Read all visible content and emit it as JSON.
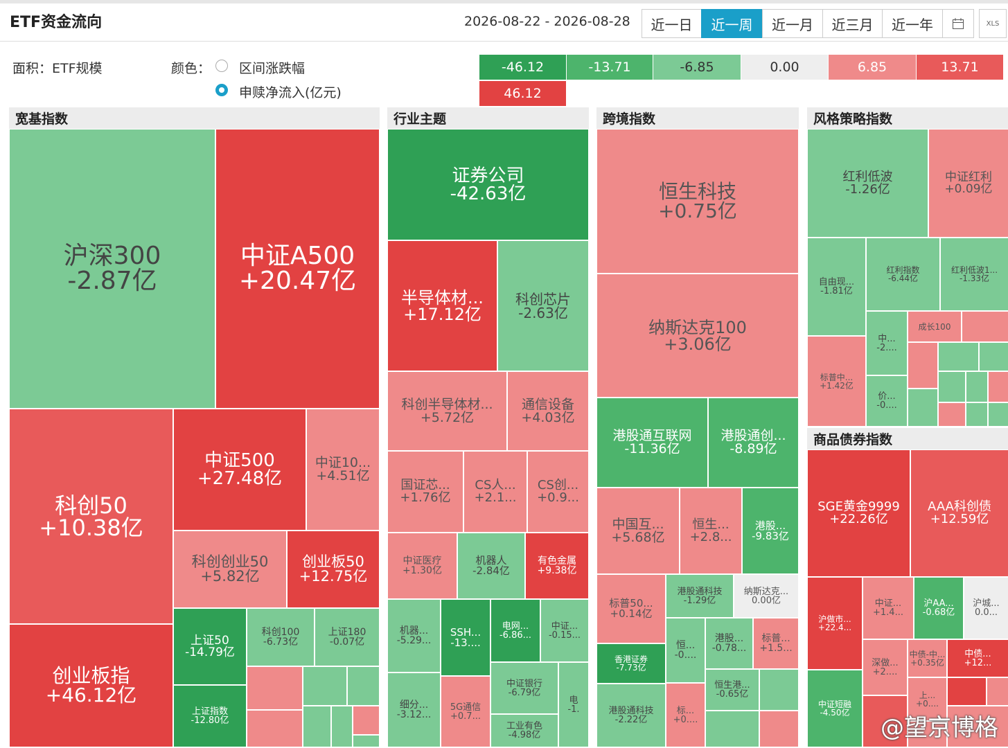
{
  "header": {
    "title": "ETF资金流向",
    "date_range": "2026-08-22 - 2026-08-28",
    "tabs": [
      "近一日",
      "近一周",
      "近一月",
      "近三月",
      "近一年"
    ],
    "export": "XLS"
  },
  "options": {
    "area_label": "面积：ETF规模",
    "color_label": "颜色：",
    "color_options": [
      "区间涨跌幅",
      "申赎净流入(亿元)"
    ]
  },
  "color_legend": [
    "-46.12",
    "-13.71",
    "-6.85",
    "0.00",
    "6.85",
    "13.71",
    "46.12"
  ],
  "sections": [
    {
      "title": "宽基指数",
      "tiles": [
        {
          "name": "沪深300",
          "value": "-2.87亿"
        },
        {
          "name": "中证A500",
          "value": "+20.47亿"
        },
        {
          "name": "科创50",
          "value": "+10.38亿"
        },
        {
          "name": "创业板指",
          "value": "+46.12亿"
        },
        {
          "name": "中证500",
          "value": "+27.48亿"
        },
        {
          "name": "中证10...",
          "value": "+4.51亿"
        },
        {
          "name": "科创创业50",
          "value": "+5.82亿"
        },
        {
          "name": "创业板50",
          "value": "+12.75亿"
        },
        {
          "name": "上证50",
          "value": "-14.79亿"
        },
        {
          "name": "上证指数",
          "value": "-12.80亿"
        },
        {
          "name": "科创100",
          "value": "-6.73亿"
        },
        {
          "name": "上证180",
          "value": "-0.07亿"
        }
      ]
    },
    {
      "title": "行业主题",
      "tiles": [
        {
          "name": "证券公司",
          "value": "-42.63亿"
        },
        {
          "name": "半导体材...",
          "value": "+17.12亿"
        },
        {
          "name": "科创芯片",
          "value": "-2.63亿"
        },
        {
          "name": "科创半导体材...",
          "value": "+5.72亿"
        },
        {
          "name": "通信设备",
          "value": "+4.03亿"
        },
        {
          "name": "国证芯...",
          "value": "+1.76亿"
        },
        {
          "name": "CS人...",
          "value": "+2.1..."
        },
        {
          "name": "CS创...",
          "value": "+0.9..."
        },
        {
          "name": "中证医疗",
          "value": "+1.30亿"
        },
        {
          "name": "机器人",
          "value": "-2.84亿"
        },
        {
          "name": "有色金属",
          "value": "+9.38亿"
        },
        {
          "name": "机器...",
          "value": "-5.29..."
        },
        {
          "name": "SSH...",
          "value": "-13...."
        },
        {
          "name": "电网...",
          "value": "-6.86..."
        },
        {
          "name": "中证...",
          "value": "-0.15..."
        },
        {
          "name": "细分...",
          "value": "-3.12..."
        },
        {
          "name": "5G通信",
          "value": "+0.7..."
        },
        {
          "name": "中证银行",
          "value": "-6.79亿"
        },
        {
          "name": "工业有色",
          "value": "-4.98亿"
        },
        {
          "name": "电",
          "value": "-1."
        }
      ]
    },
    {
      "title": "跨境指数",
      "tiles": [
        {
          "name": "恒生科技",
          "value": "+0.75亿"
        },
        {
          "name": "纳斯达克100",
          "value": "+3.06亿"
        },
        {
          "name": "港股通互联网",
          "value": "-11.36亿"
        },
        {
          "name": "港股通创...",
          "value": "-8.89亿"
        },
        {
          "name": "中国互...",
          "value": "+5.68亿"
        },
        {
          "name": "恒生...",
          "value": "+2.8..."
        },
        {
          "name": "港股...",
          "value": "-9.83亿"
        },
        {
          "name": "标普50...",
          "value": "+0.14亿"
        },
        {
          "name": "港股通科技",
          "value": "-1.29亿"
        },
        {
          "name": "纳斯达克...",
          "value": "0.00亿"
        },
        {
          "name": "香港证券",
          "value": "-7.73亿"
        },
        {
          "name": "港股通科技",
          "value": "-2.22亿"
        },
        {
          "name": "恒...",
          "value": "-0...."
        },
        {
          "name": "港股...",
          "value": "-0.78..."
        },
        {
          "name": "标普...",
          "value": "+1.5..."
        },
        {
          "name": "恒生港...",
          "value": "-0.65亿"
        },
        {
          "name": "标...",
          "value": "+0...."
        }
      ]
    },
    {
      "title": "风格策略指数",
      "tiles": [
        {
          "name": "红利低波",
          "value": "-1.26亿"
        },
        {
          "name": "中证红利",
          "value": "+0.09亿"
        },
        {
          "name": "自由现...",
          "value": "-1.81亿"
        },
        {
          "name": "红利指数",
          "value": "-6.44亿"
        },
        {
          "name": "红利低波1...",
          "value": "-1.33亿"
        },
        {
          "name": "中...",
          "value": "-2...."
        },
        {
          "name": "成长100",
          "value": ""
        },
        {
          "name": "标普中...",
          "value": "+1.42亿"
        },
        {
          "name": "价...",
          "value": "-0...."
        }
      ]
    },
    {
      "title": "商品债券指数",
      "tiles": [
        {
          "name": "SGE黄金9999",
          "value": "+22.26亿"
        },
        {
          "name": "AAA科创债",
          "value": "+12.59亿"
        },
        {
          "name": "沪做市...",
          "value": "+22.4..."
        },
        {
          "name": "中证...",
          "value": "+1.4..."
        },
        {
          "name": "沪AA...",
          "value": "-0.68亿"
        },
        {
          "name": "沪城...",
          "value": "0.0..."
        },
        {
          "name": "中证短融",
          "value": "-4.50亿"
        },
        {
          "name": "深做...",
          "value": "+2...."
        },
        {
          "name": "中债-中...",
          "value": "+0.35亿"
        },
        {
          "name": "中债...",
          "value": "+12..."
        },
        {
          "name": "上...",
          "value": "+0...."
        }
      ]
    }
  ],
  "watermark": "@望京博格"
}
